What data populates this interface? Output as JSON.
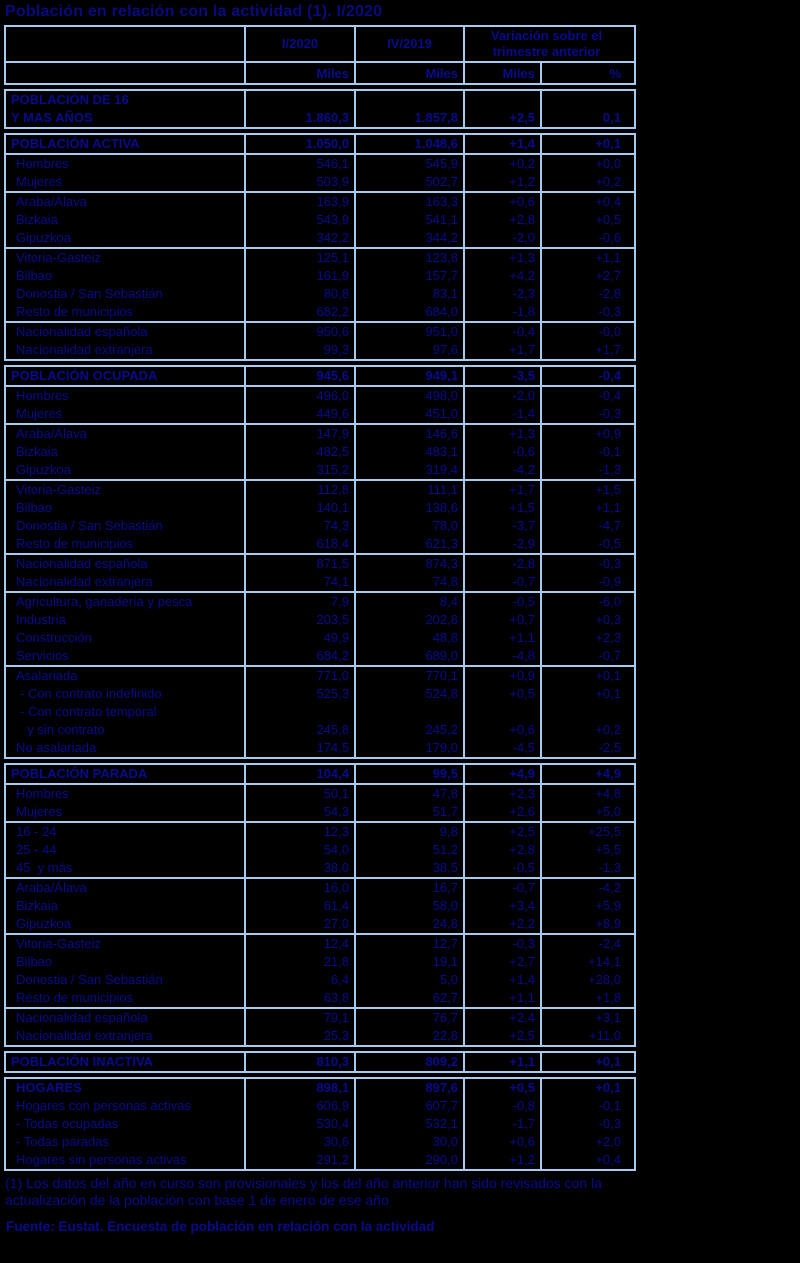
{
  "title": "Población en relación con la actividad (1). I/2020",
  "colors": {
    "background": "#000000",
    "text": "#0a0a8c",
    "border": "#a6cbee"
  },
  "table": {
    "col_headers": [
      "I/2020",
      "IV/2019",
      "Variación sobre  el trimestre anterior"
    ],
    "sub_headers": [
      "Miles",
      "Miles",
      "Miles",
      "%"
    ],
    "blocks": [
      {
        "name": "poblacion-16-y-mas",
        "groups": [
          [
            {
              "label": [
                "POBLACIÓN DE 16",
                "Y MAS AÑOS"
              ],
              "bold": true,
              "indent": 0,
              "values": [
                "1.860,3",
                "1.857,8",
                "+2,5",
                "0,1"
              ]
            }
          ]
        ]
      },
      {
        "name": "poblacion-activa",
        "groups": [
          [
            {
              "label": "POBLACIÓN ACTIVA",
              "bold": true,
              "indent": 0,
              "values": [
                "1.050,0",
                "1.048,6",
                "+1,4",
                "+0,1"
              ]
            }
          ],
          [
            {
              "label": "Hombres",
              "indent": 1,
              "values": [
                "546,1",
                "545,9",
                "+0,2",
                "+0,0"
              ]
            },
            {
              "label": "Mujeres",
              "indent": 1,
              "values": [
                "503,9",
                "502,7",
                "+1,2",
                "+0,2"
              ]
            }
          ],
          [
            {
              "label": "Araba/Álava",
              "indent": 1,
              "values": [
                "163,9",
                "163,3",
                "+0,6",
                "+0,4"
              ]
            },
            {
              "label": "Bizkaia",
              "indent": 1,
              "values": [
                "543,9",
                "541,1",
                "+2,8",
                "+0,5"
              ]
            },
            {
              "label": "Gipuzkoa",
              "indent": 1,
              "values": [
                "342,2",
                "344,2",
                "-2,0",
                "-0,6"
              ]
            }
          ],
          [
            {
              "label": "Vitoria-Gasteiz",
              "indent": 1,
              "values": [
                "125,1",
                "123,8",
                "+1,3",
                "+1,1"
              ]
            },
            {
              "label": "Bilbao",
              "indent": 1,
              "values": [
                "161,9",
                "157,7",
                "+4,2",
                "+2,7"
              ]
            },
            {
              "label": "Donostia / San Sebastián",
              "indent": 1,
              "values": [
                "80,8",
                "83,1",
                "-2,3",
                "-2,8"
              ]
            },
            {
              "label": "Resto de municipios",
              "indent": 1,
              "values": [
                "682,2",
                "684,0",
                "-1,8",
                "-0,3"
              ]
            }
          ],
          [
            {
              "label": "Nacionalidad española",
              "indent": 1,
              "values": [
                "950,6",
                "951,0",
                "-0,4",
                "-0,0"
              ]
            },
            {
              "label": "Nacionalidad extranjera",
              "indent": 1,
              "values": [
                "99,3",
                "97,6",
                "+1,7",
                "+1,7"
              ]
            }
          ]
        ]
      },
      {
        "name": "poblacion-ocupada",
        "groups": [
          [
            {
              "label": "POBLACIÓN OCUPADA",
              "bold": true,
              "indent": 0,
              "values": [
                "945,6",
                "949,1",
                "-3,5",
                "-0,4"
              ]
            }
          ],
          [
            {
              "label": "Hombres",
              "indent": 1,
              "values": [
                "496,0",
                "498,0",
                "-2,0",
                "-0,4"
              ]
            },
            {
              "label": "Mujeres",
              "indent": 1,
              "values": [
                "449,6",
                "451,0",
                "-1,4",
                "-0,3"
              ]
            }
          ],
          [
            {
              "label": "Araba/Álava",
              "indent": 1,
              "values": [
                "147,9",
                "146,6",
                "+1,3",
                "+0,9"
              ]
            },
            {
              "label": "Bizkaia",
              "indent": 1,
              "values": [
                "482,5",
                "483,1",
                "-0,6",
                "-0,1"
              ]
            },
            {
              "label": "Gipuzkoa",
              "indent": 1,
              "values": [
                "315,2",
                "319,4",
                "-4,2",
                "-1,3"
              ]
            }
          ],
          [
            {
              "label": "Vitoria-Gasteiz",
              "indent": 1,
              "values": [
                "112,8",
                "111,1",
                "+1,7",
                "+1,5"
              ]
            },
            {
              "label": "Bilbao",
              "indent": 1,
              "values": [
                "140,1",
                "138,6",
                "+1,5",
                "+1,1"
              ]
            },
            {
              "label": "Donostia / San Sebastián",
              "indent": 1,
              "values": [
                "74,3",
                "78,0",
                "-3,7",
                "-4,7"
              ]
            },
            {
              "label": "Resto de municipios",
              "indent": 1,
              "values": [
                "618,4",
                "621,3",
                "-2,9",
                "-0,5"
              ]
            }
          ],
          [
            {
              "label": "Nacionalidad española",
              "indent": 1,
              "values": [
                "871,5",
                "874,3",
                "-2,8",
                "-0,3"
              ]
            },
            {
              "label": "Nacionalidad extranjera",
              "indent": 1,
              "values": [
                "74,1",
                "74,8",
                "-0,7",
                "-0,9"
              ]
            }
          ],
          [
            {
              "label": "Agricultura, ganadería y pesca",
              "indent": 1,
              "values": [
                "7,9",
                "8,4",
                "-0,5",
                "-6,0"
              ]
            },
            {
              "label": "Industria",
              "indent": 1,
              "values": [
                "203,5",
                "202,8",
                "+0,7",
                "+0,3"
              ]
            },
            {
              "label": "Construcción",
              "indent": 1,
              "values": [
                "49,9",
                "48,8",
                "+1,1",
                "+2,3"
              ]
            },
            {
              "label": "Servicios",
              "indent": 1,
              "values": [
                "684,2",
                "689,0",
                "-4,8",
                "-0,7"
              ]
            }
          ],
          [
            {
              "label": "Asalariada",
              "indent": 1,
              "values": [
                "771,0",
                "770,1",
                "+0,9",
                "+0,1"
              ]
            },
            {
              "label": "- Con contrato indefinido",
              "indent": 2,
              "values": [
                "525,3",
                "524,8",
                "+0,5",
                "+0,1"
              ]
            },
            {
              "label": [
                "- Con contrato temporal",
                "  y sin contrato"
              ],
              "indent": 2,
              "values": [
                "245,8",
                "245,2",
                "+0,6",
                "+0,2"
              ]
            },
            {
              "label": "No asalariada",
              "indent": 1,
              "values": [
                "174,5",
                "179,0",
                "-4,5",
                "-2,5"
              ]
            }
          ]
        ]
      },
      {
        "name": "poblacion-parada",
        "groups": [
          [
            {
              "label": "POBLACIÓN PARADA",
              "bold": true,
              "indent": 0,
              "values": [
                "104,4",
                "99,5",
                "+4,9",
                "+4,9"
              ]
            }
          ],
          [
            {
              "label": "Hombres",
              "indent": 1,
              "values": [
                "50,1",
                "47,8",
                "+2,3",
                "+4,8"
              ]
            },
            {
              "label": "Mujeres",
              "indent": 1,
              "values": [
                "54,3",
                "51,7",
                "+2,6",
                "+5,0"
              ]
            }
          ],
          [
            {
              "label": "16 - 24",
              "indent": 1,
              "values": [
                "12,3",
                "9,8",
                "+2,5",
                "+25,5"
              ]
            },
            {
              "label": "25 - 44",
              "indent": 1,
              "values": [
                "54,0",
                "51,2",
                "+2,8",
                "+5,5"
              ]
            },
            {
              "label": "45  y más",
              "indent": 1,
              "values": [
                "38,0",
                "38,5",
                "-0,5",
                "-1,3"
              ]
            }
          ],
          [
            {
              "label": "Araba/Álava",
              "indent": 1,
              "values": [
                "16,0",
                "16,7",
                "-0,7",
                "-4,2"
              ]
            },
            {
              "label": "Bizkaia",
              "indent": 1,
              "values": [
                "61,4",
                "58,0",
                "+3,4",
                "+5,9"
              ]
            },
            {
              "label": "Gipuzkoa",
              "indent": 1,
              "values": [
                "27,0",
                "24,8",
                "+2,2",
                "+8,9"
              ]
            }
          ],
          [
            {
              "label": "Vitoria-Gasteiz",
              "indent": 1,
              "values": [
                "12,4",
                "12,7",
                "-0,3",
                "-2,4"
              ]
            },
            {
              "label": "Bilbao",
              "indent": 1,
              "values": [
                "21,8",
                "19,1",
                "+2,7",
                "+14,1"
              ]
            },
            {
              "label": "Donostia / San Sebastián",
              "indent": 1,
              "values": [
                "6,4",
                "5,0",
                "+1,4",
                "+28,0"
              ]
            },
            {
              "label": "Resto de municipios",
              "indent": 1,
              "values": [
                "63,8",
                "62,7",
                "+1,1",
                "+1,8"
              ]
            }
          ],
          [
            {
              "label": "Nacionalidad española",
              "indent": 1,
              "values": [
                "79,1",
                "76,7",
                "+2,4",
                "+3,1"
              ]
            },
            {
              "label": "Nacionalidad extranjera",
              "indent": 1,
              "values": [
                "25,3",
                "22,8",
                "+2,5",
                "+11,0"
              ]
            }
          ]
        ]
      },
      {
        "name": "poblacion-inactiva",
        "groups": [
          [
            {
              "label": "POBLACIÓN INACTIVA",
              "bold": true,
              "indent": 0,
              "values": [
                "810,3",
                "809,2",
                "+1,1",
                "+0,1"
              ]
            }
          ]
        ]
      },
      {
        "name": "hogares",
        "groups": [
          [
            {
              "label": "HOGARES",
              "bold": true,
              "indent": 1,
              "values": [
                "898,1",
                "897,6",
                "+0,5",
                "+0,1"
              ]
            },
            {
              "label": "Hogares con personas activas",
              "indent": 1,
              "values": [
                "606,9",
                "607,7",
                "-0,8",
                "-0,1"
              ]
            },
            {
              "label": "- Todas ocupadas",
              "indent": 1,
              "values": [
                "530,4",
                "532,1",
                "-1,7",
                "-0,3"
              ]
            },
            {
              "label": "- Todas paradas",
              "indent": 1,
              "values": [
                "30,6",
                "30,0",
                "+0,6",
                "+2,0"
              ]
            },
            {
              "label": "Hogares sin personas activas",
              "indent": 1,
              "values": [
                "291,2",
                "290,0",
                "+1,2",
                "+0,4"
              ]
            }
          ]
        ]
      }
    ]
  },
  "footnote": "(1) Los datos del año en curso son provisionales y los del año anterior han sido revisados con la actualización de la población con base 1 de enero de ese año",
  "source": "Fuente: Eustat. Encuesta de población en relación con la actividad"
}
